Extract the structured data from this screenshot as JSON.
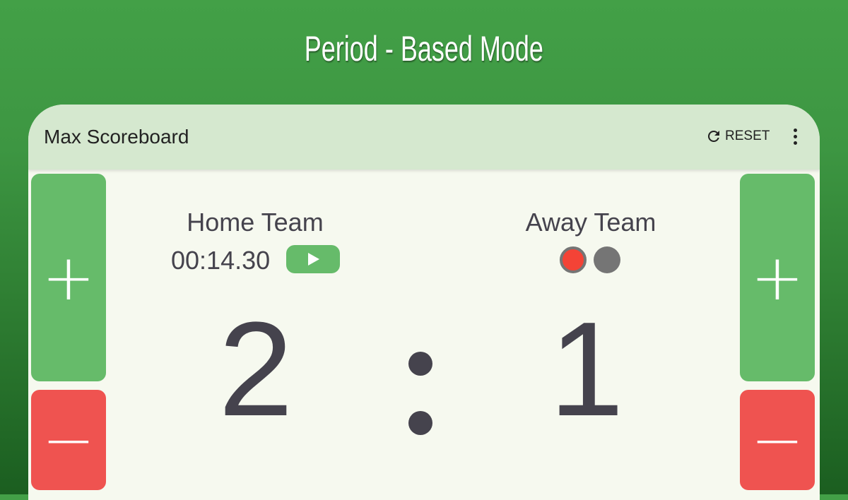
{
  "headline": "Period - Based Mode",
  "app": {
    "title": "Max Scoreboard",
    "reset_label": "RESET"
  },
  "home": {
    "name": "Home Team",
    "timer": "00:14.30",
    "score": "2"
  },
  "away": {
    "name": "Away Team",
    "score": "1",
    "periods": [
      {
        "active": true
      },
      {
        "active": false
      }
    ]
  },
  "separator": ":",
  "buttons": {
    "plus": "+",
    "minus": "−"
  },
  "colors": {
    "plus": "#66bb6a",
    "minus": "#ef5350",
    "active_period": "#f44336",
    "inactive_period": "#757575"
  }
}
